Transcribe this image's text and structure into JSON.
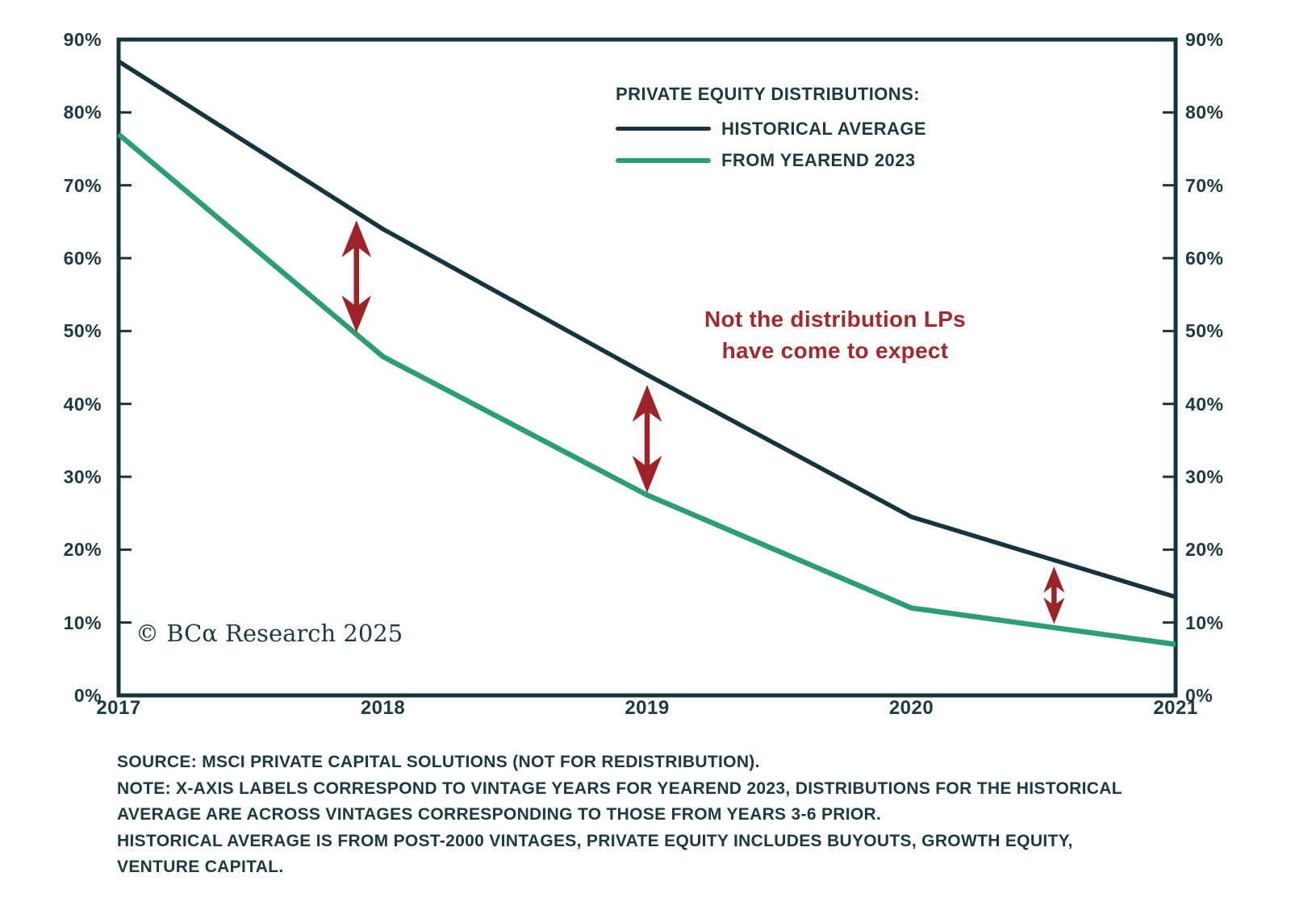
{
  "chart_data": {
    "type": "line",
    "x": [
      2017,
      2018,
      2019,
      2020,
      2021
    ],
    "xtick_labels": [
      "2017",
      "2018",
      "2019",
      "2020",
      "2021"
    ],
    "ytick_labels": [
      "0%",
      "10%",
      "20%",
      "30%",
      "40%",
      "50%",
      "60%",
      "70%",
      "80%",
      "90%"
    ],
    "ylim": [
      0,
      90
    ],
    "ytick_step": 10,
    "grid": false,
    "axis_color": "#16343e",
    "series": [
      {
        "name": "HISTORICAL AVERAGE",
        "color": "#16343e",
        "values": [
          87,
          64,
          44,
          24.5,
          13.5
        ]
      },
      {
        "name": "FROM YEAREND 2023",
        "color": "#2b9e74",
        "values": [
          77,
          46.5,
          27.5,
          12,
          7
        ]
      }
    ],
    "arrows": [
      {
        "x": 2017.9,
        "y1": 49.8,
        "y2": 65.2
      },
      {
        "x": 2019.0,
        "y1": 27.8,
        "y2": 42.6
      },
      {
        "x": 2020.54,
        "y1": 9.8,
        "y2": 17.7
      }
    ],
    "arrow_color": "#9e2226",
    "legend_position": "top-center-inside"
  },
  "legend": {
    "title": "PRIVATE EQUITY DISTRIBUTIONS:"
  },
  "annotation": {
    "line1": "Not the distribution LPs",
    "line2": "have come to expect",
    "color": "#a22a2d"
  },
  "copyright": "© BCα Research 2025",
  "footnotes": {
    "lines": [
      "SOURCE: MSCI PRIVATE CAPITAL SOLUTIONS (NOT FOR REDISTRIBUTION).",
      "NOTE: X-AXIS LABELS CORRESPOND TO VINTAGE YEARS FOR YEAREND 2023, DISTRIBUTIONS FOR THE HISTORICAL",
      "AVERAGE ARE ACROSS VINTAGES CORRESPONDING TO THOSE FROM YEARS 3-6 PRIOR.",
      "HISTORICAL AVERAGE IS FROM POST-2000 VINTAGES, PRIVATE EQUITY INCLUDES BUYOUTS, GROWTH EQUITY,",
      "VENTURE CAPITAL."
    ]
  }
}
